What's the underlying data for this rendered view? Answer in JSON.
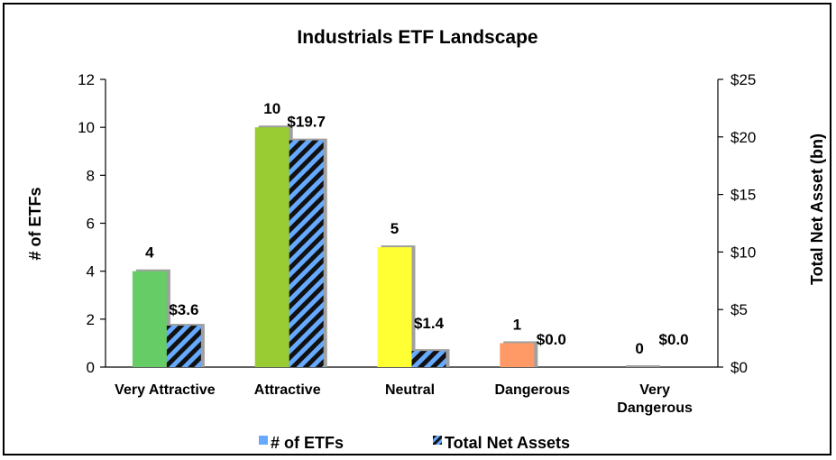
{
  "chart_data": {
    "type": "bar",
    "title": "Industrials ETF Landscape",
    "categories": [
      "Very Attractive",
      "Attractive",
      "Neutral",
      "Dangerous",
      "Very Dangerous"
    ],
    "category_lines": [
      [
        "Very Attractive"
      ],
      [
        "Attractive"
      ],
      [
        "Neutral"
      ],
      [
        "Dangerous"
      ],
      [
        "Very",
        "Dangerous"
      ]
    ],
    "ylabel": "# of ETFs",
    "y2label": "Total Net Asset (bn)",
    "ylim": [
      0,
      12
    ],
    "y2lim": [
      0,
      25
    ],
    "yticks": [
      "0",
      "2",
      "4",
      "6",
      "8",
      "10",
      "12"
    ],
    "y2ticks": [
      "$0",
      "$5",
      "$10",
      "$15",
      "$20",
      "$25"
    ],
    "series": [
      {
        "name": "# of ETFs",
        "axis": "left",
        "values": [
          4,
          10,
          5,
          1,
          0
        ],
        "labels": [
          "4",
          "10",
          "5",
          "1",
          "0"
        ],
        "colors": [
          "#66cc66",
          "#99cc33",
          "#ffff33",
          "#ff9966",
          "#cccccc"
        ]
      },
      {
        "name": "Total Net Assets",
        "axis": "right",
        "values": [
          3.6,
          19.7,
          1.4,
          0.0,
          0.0
        ],
        "labels": [
          "$3.6",
          "$19.7",
          "$1.4",
          "$0.0",
          "$0.0"
        ],
        "pattern": "blue-black-diagonal-stripes"
      }
    ],
    "legend_position": "bottom",
    "grid": false
  }
}
